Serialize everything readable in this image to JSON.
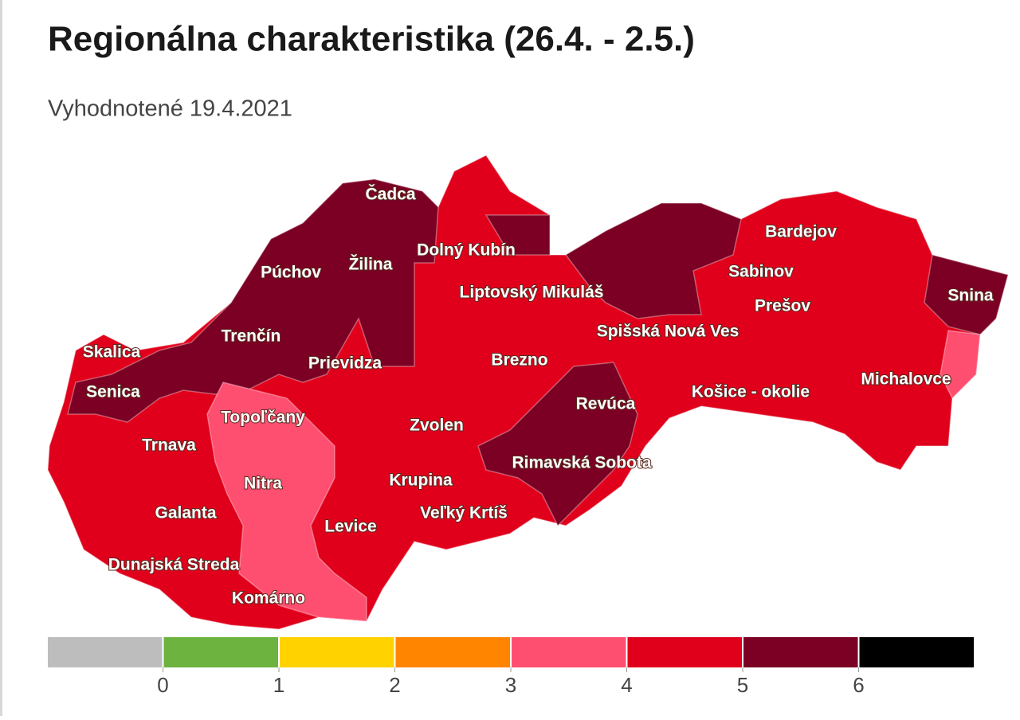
{
  "header": {
    "title": "Regionálna charakteristika (26.4. - 2.5.)",
    "subtitle": "Vyhodnotené 19.4.2021"
  },
  "map": {
    "labels": [
      "Čadca",
      "Dolný Kubín",
      "Púchov",
      "Žilina",
      "Liptovský Mikuláš",
      "Bardejov",
      "Sabinov",
      "Prešov",
      "Snina",
      "Trenčín",
      "Spišská Nová Ves",
      "Skalica",
      "Prievidza",
      "Brezno",
      "Michalovce",
      "Senica",
      "Košice - okolie",
      "Revúca",
      "Topoľčany",
      "Zvolen",
      "Trnava",
      "Rimavská Sobota",
      "Nitra",
      "Krupina",
      "Galanta",
      "Veľký Krtíš",
      "Levice",
      "Dunajská Streda",
      "Komárno"
    ]
  },
  "legend": {
    "colors": [
      "#bdbdbd",
      "#6db33f",
      "#ffd200",
      "#ff8400",
      "#ff4f70",
      "#e0001b",
      "#7b0024",
      "#000000"
    ],
    "ticks": [
      0,
      1,
      2,
      3,
      4,
      5,
      6
    ]
  }
}
